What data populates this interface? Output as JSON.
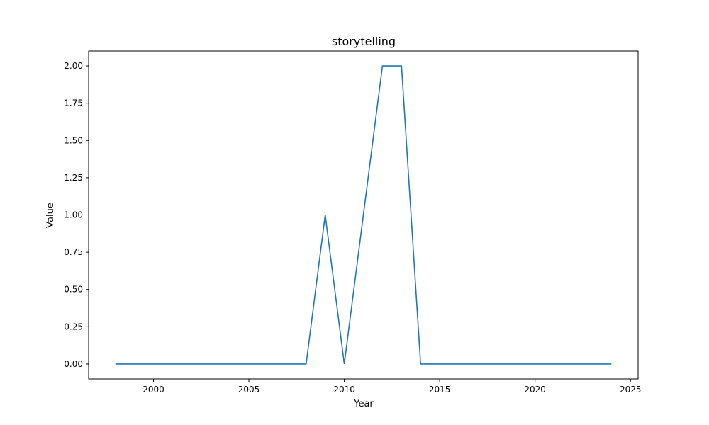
{
  "chart_data": {
    "type": "line",
    "title": "storytelling",
    "xlabel": "Year",
    "ylabel": "Value",
    "xlim": [
      1996.6,
      2025.4
    ],
    "ylim": [
      -0.1,
      2.1
    ],
    "x_ticks": [
      2000,
      2005,
      2010,
      2015,
      2020,
      2025
    ],
    "y_ticks": [
      0.0,
      0.25,
      0.5,
      0.75,
      1.0,
      1.25,
      1.5,
      1.75,
      2.0
    ],
    "y_tick_labels": [
      "0.00",
      "0.25",
      "0.50",
      "0.75",
      "1.00",
      "1.25",
      "1.50",
      "1.75",
      "2.00"
    ],
    "grid": false,
    "line_color": "#1f77b4",
    "series": [
      {
        "x": [
          1998,
          1999,
          2000,
          2001,
          2002,
          2003,
          2004,
          2005,
          2006,
          2007,
          2008,
          2009,
          2010,
          2011,
          2012,
          2013,
          2014,
          2015,
          2016,
          2017,
          2018,
          2019,
          2020,
          2021,
          2022,
          2023,
          2024
        ],
        "values": [
          0,
          0,
          0,
          0,
          0,
          0,
          0,
          0,
          0,
          0,
          0,
          1,
          0,
          1,
          2,
          2,
          0,
          0,
          0,
          0,
          0,
          0,
          0,
          0,
          0,
          0,
          0
        ]
      }
    ]
  }
}
